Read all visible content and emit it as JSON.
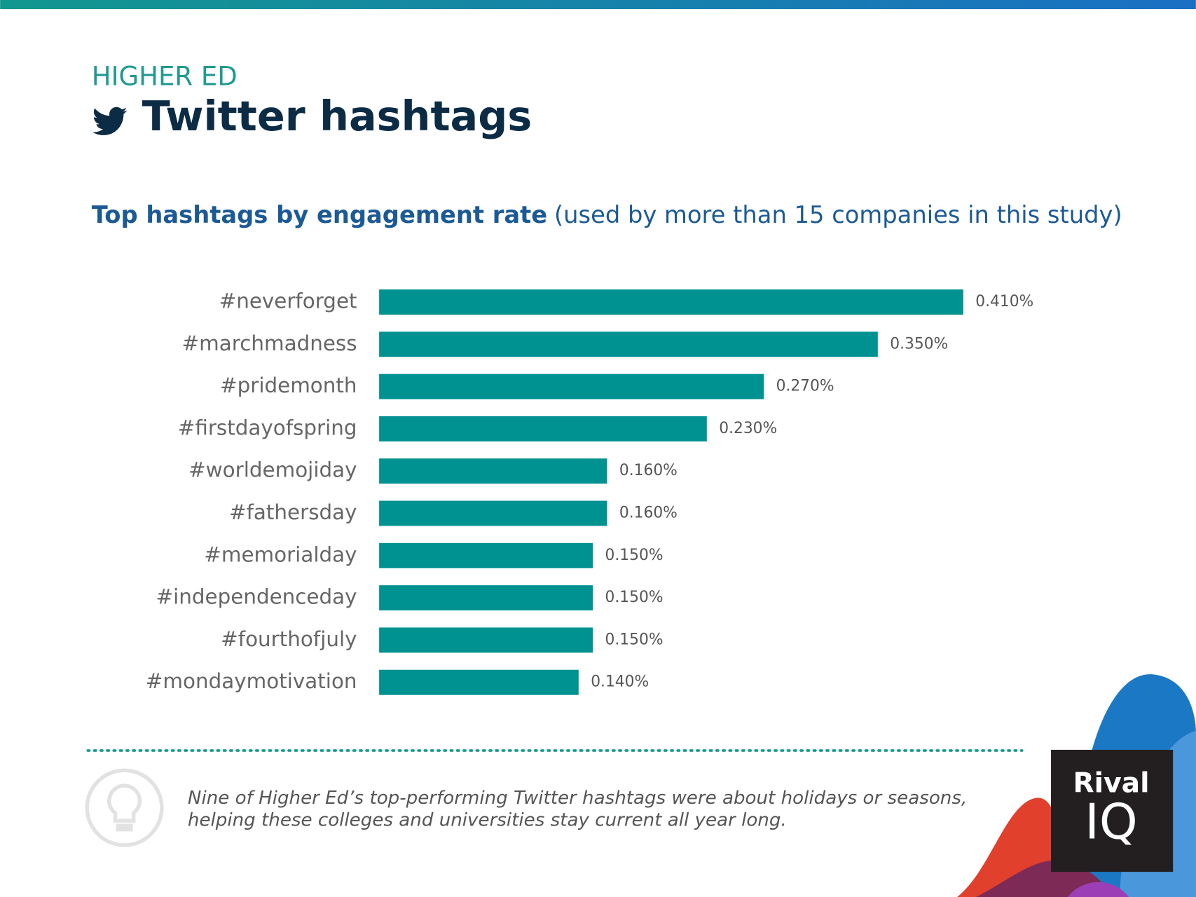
{
  "chart_data": {
    "type": "bar",
    "orientation": "horizontal",
    "kicker": "HIGHER ED",
    "title": "Twitter hashtags",
    "subtitle": "Top hashtags by engagement rate",
    "subtitle_note": "(used by more than 15 companies in this study)",
    "categories": [
      "#neverforget",
      "#marchmadness",
      "#pridemonth",
      "#firstdayofspring",
      "#worldemojiday",
      "#fathersday",
      "#memorialday",
      "#independenceday",
      "#fourthofjuly",
      "#mondaymotivation"
    ],
    "values": [
      0.41,
      0.35,
      0.27,
      0.23,
      0.16,
      0.16,
      0.15,
      0.15,
      0.15,
      0.14
    ],
    "value_labels": [
      "0.410%",
      "0.350%",
      "0.270%",
      "0.230%",
      "0.160%",
      "0.160%",
      "0.150%",
      "0.150%",
      "0.150%",
      "0.140%"
    ],
    "color": "#009191",
    "note": [
      "Nine of Higher Ed’s top-performing Twitter hashtags were about holidays or seasons,",
      "helping these colleges and universities stay current all year long."
    ],
    "logo": [
      "Rival",
      "IQ"
    ]
  }
}
